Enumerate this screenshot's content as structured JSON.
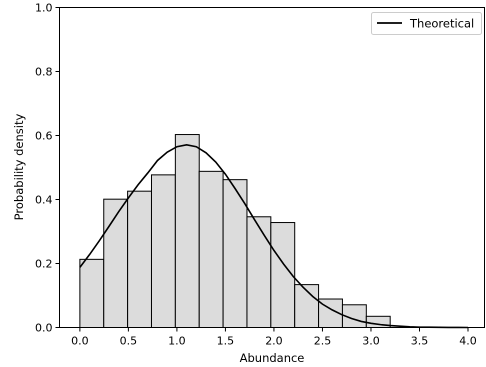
{
  "chart_data": {
    "type": "bar",
    "title": "",
    "xlabel": "Abundance",
    "ylabel": "Probability density",
    "xlim": [
      -0.21,
      4.17
    ],
    "ylim": [
      0.0,
      1.0
    ],
    "xticks": [
      "0.0",
      "0.5",
      "1.0",
      "1.5",
      "2.0",
      "2.5",
      "3.0",
      "3.5",
      "4.0"
    ],
    "yticks": [
      "0.0",
      "0.2",
      "0.4",
      "0.6",
      "0.8",
      "1.0"
    ],
    "histogram": {
      "bin_edges": [
        0.0,
        0.246,
        0.492,
        0.738,
        0.984,
        1.23,
        1.476,
        1.722,
        1.968,
        2.214,
        2.46,
        2.706,
        2.952,
        3.198
      ],
      "values": [
        0.213,
        0.401,
        0.426,
        0.477,
        0.603,
        0.488,
        0.462,
        0.346,
        0.328,
        0.134,
        0.089,
        0.071,
        0.035
      ],
      "fill_color": "#dcdcdc",
      "edge_color": "#000000"
    },
    "series": [
      {
        "name": "Theoretical",
        "type": "line",
        "color": "#000000",
        "x": [
          0.0,
          0.1,
          0.2,
          0.3,
          0.4,
          0.5,
          0.6,
          0.7,
          0.8,
          0.9,
          1.0,
          1.1,
          1.2,
          1.3,
          1.4,
          1.5,
          1.6,
          1.7,
          1.8,
          1.9,
          2.0,
          2.1,
          2.2,
          2.3,
          2.4,
          2.5,
          2.6,
          2.7,
          2.8,
          2.9,
          3.0,
          3.1,
          3.2,
          3.3,
          3.4,
          3.5,
          3.6,
          3.7,
          3.8,
          3.9,
          4.0
        ],
        "y": [
          0.188,
          0.228,
          0.271,
          0.316,
          0.362,
          0.405,
          0.446,
          0.483,
          0.522,
          0.548,
          0.565,
          0.571,
          0.565,
          0.546,
          0.517,
          0.479,
          0.434,
          0.387,
          0.337,
          0.288,
          0.241,
          0.198,
          0.159,
          0.126,
          0.097,
          0.073,
          0.055,
          0.04,
          0.028,
          0.019,
          0.013,
          0.009,
          0.006,
          0.004,
          0.002,
          0.001,
          0.001,
          0.0005,
          0.0002,
          0.0001,
          0.0
        ]
      }
    ],
    "legend": {
      "position": "top-right",
      "entries": [
        "Theoretical"
      ]
    },
    "grid": false
  }
}
